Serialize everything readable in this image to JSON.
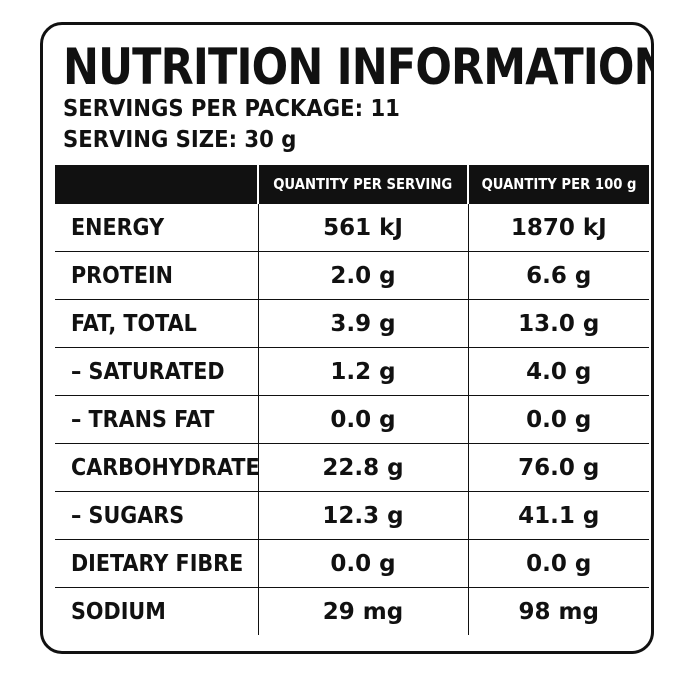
{
  "panel": {
    "title": "NUTRITION INFORMATION",
    "servings_per_package": "SERVINGS PER PACKAGE: 11",
    "serving_size": "SERVING SIZE: 30 g"
  },
  "table": {
    "headers": [
      "",
      "QUANTITY PER SERVING",
      "QUANTITY PER 100 g"
    ],
    "rows": [
      {
        "nutrient": "ENERGY",
        "per_serving": "561 kJ",
        "per_100g": "1870 kJ"
      },
      {
        "nutrient": "PROTEIN",
        "per_serving": "2.0 g",
        "per_100g": "6.6 g"
      },
      {
        "nutrient": "FAT, TOTAL",
        "per_serving": "3.9 g",
        "per_100g": "13.0 g"
      },
      {
        "nutrient": "– SATURATED",
        "per_serving": "1.2 g",
        "per_100g": "4.0 g"
      },
      {
        "nutrient": "– TRANS FAT",
        "per_serving": "0.0 g",
        "per_100g": "0.0 g"
      },
      {
        "nutrient": "CARBOHYDRATE",
        "per_serving": "22.8 g",
        "per_100g": "76.0 g"
      },
      {
        "nutrient": "– SUGARS",
        "per_serving": "12.3 g",
        "per_100g": "41.1 g"
      },
      {
        "nutrient": "DIETARY FIBRE",
        "per_serving": "0.0 g",
        "per_100g": "0.0 g"
      },
      {
        "nutrient": "SODIUM",
        "per_serving": "29 mg",
        "per_100g": "98 mg"
      }
    ]
  },
  "colors": {
    "ink": "#111111",
    "background": "#ffffff"
  }
}
